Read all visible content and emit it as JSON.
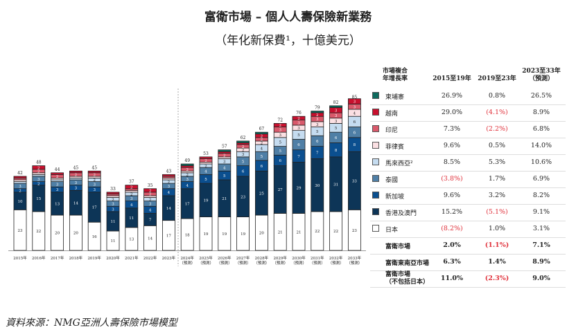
{
  "title": "富衛市場 – 個人人壽保險新業務",
  "subtitle": "（年化新保費¹，十億美元）",
  "source": "資料來源：NMG亞洲人壽保險市場模型",
  "chart_data": {
    "type": "bar",
    "stacked": true,
    "categories": [
      "2015年",
      "2016年",
      "2017年",
      "2018年",
      "2019年",
      "2020年",
      "2021年",
      "2022年",
      "2023年",
      "2024年",
      "2025年",
      "2026年",
      "2027年",
      "2028年",
      "2029年",
      "2030年",
      "2031年",
      "2032年",
      "2033年"
    ],
    "forecast_label": "（預測）",
    "forecast_from_index": 9,
    "totals": [
      42,
      48,
      44,
      45,
      45,
      33,
      37,
      35,
      43,
      49,
      53,
      57,
      62,
      67,
      72,
      76,
      79,
      82,
      85
    ],
    "series": [
      {
        "name": "日本",
        "color": "#ffffff",
        "values": [
          23,
          22,
          20,
          20,
          16,
          11,
          13,
          14,
          17,
          18,
          19,
          19,
          19,
          20,
          21,
          21,
          22,
          22,
          23
        ]
      },
      {
        "name": "香港及澳門",
        "color": "#0d3557",
        "values": [
          10,
          15,
          13,
          14,
          17,
          11,
          11,
          7,
          14,
          17,
          19,
          21,
          23,
          25,
          27,
          29,
          30,
          31,
          33
        ]
      },
      {
        "name": "新加坡",
        "color": "#0b4f8f",
        "values": [
          2,
          2,
          3,
          3,
          3,
          3,
          4,
          4,
          4,
          4,
          5,
          5,
          6,
          6,
          6,
          7,
          7,
          8,
          8
        ]
      },
      {
        "name": "泰國",
        "color": "#4f7fa6",
        "values": [
          3,
          3,
          3,
          3,
          3,
          3,
          3,
          3,
          3,
          3,
          4,
          4,
          5,
          5,
          5,
          6,
          6,
          6,
          6
        ]
      },
      {
        "name": "馬來西亞",
        "color": "#c5dcf0",
        "values": [
          1,
          1,
          1,
          1,
          2,
          2,
          2,
          2,
          2,
          2,
          2,
          3,
          3,
          4,
          5,
          5,
          5,
          5,
          6
        ]
      },
      {
        "name": "菲律賓",
        "color": "#fbe0e3",
        "values": [
          1,
          1,
          1,
          1,
          1,
          1,
          1,
          1,
          1,
          1,
          1,
          1,
          2,
          2,
          3,
          3,
          3,
          3,
          4
        ]
      },
      {
        "name": "印尼",
        "color": "#d9596b",
        "values": [
          1,
          2,
          2,
          2,
          2,
          1,
          1,
          2,
          1,
          2,
          2,
          2,
          2,
          2,
          3,
          3,
          3,
          3,
          3
        ]
      },
      {
        "name": "越南",
        "color": "#c8102e",
        "values": [
          1,
          2,
          1,
          1,
          1,
          1,
          2,
          2,
          1,
          1,
          1,
          1,
          1,
          2,
          2,
          2,
          2,
          3,
          3
        ]
      },
      {
        "name": "柬埔寨",
        "color": "#0e6b5e",
        "values": [
          0,
          0,
          0,
          0,
          0,
          0,
          0,
          0,
          0,
          1,
          0,
          1,
          1,
          1,
          0,
          0,
          1,
          1,
          0
        ]
      }
    ]
  },
  "table": {
    "header": {
      "label_line1": "市場複合",
      "label_line2": "年增長率",
      "col1": "2015至19年",
      "col2": "2019至23年",
      "col3_line1": "2023至33年",
      "col3_line2": "（預測）"
    },
    "rows": [
      {
        "name": "柬埔寨",
        "color": "#0e6b5e",
        "v": [
          "26.9%",
          "0.8%",
          "26.5%"
        ]
      },
      {
        "name": "越南",
        "color": "#c8102e",
        "v": [
          "29.0%",
          "(4.1%)",
          "8.9%"
        ]
      },
      {
        "name": "印尼",
        "color": "#d9596b",
        "v": [
          "7.3%",
          "(2.2%)",
          "6.8%"
        ]
      },
      {
        "name": "菲律賓",
        "color": "#fbe0e3",
        "v": [
          "9.6%",
          "0.5%",
          "14.0%"
        ]
      },
      {
        "name": "馬來西亞²",
        "color": "#c5dcf0",
        "v": [
          "8.5%",
          "5.3%",
          "10.6%"
        ]
      },
      {
        "name": "泰國",
        "color": "#4f7fa6",
        "v": [
          "(3.8%)",
          "1.7%",
          "6.9%"
        ]
      },
      {
        "name": "新加坡",
        "color": "#0b4f8f",
        "v": [
          "9.6%",
          "3.2%",
          "8.2%"
        ]
      },
      {
        "name": "香港及澳門",
        "color": "#0d3557",
        "v": [
          "15.2%",
          "(5.1%)",
          "9.1%"
        ]
      },
      {
        "name": "日本",
        "color": "#ffffff",
        "v": [
          "(8.2%)",
          "1.0%",
          "3.1%"
        ]
      }
    ],
    "totals": [
      {
        "name": "富衛市場",
        "v": [
          "2.0%",
          "(1.1%)",
          "7.1%"
        ]
      },
      {
        "name": "富衛東南亞市場",
        "v": [
          "6.3%",
          "1.4%",
          "8.9%"
        ]
      },
      {
        "name": "富衛市場",
        "name2": "（不包括日本）",
        "v": [
          "11.0%",
          "(2.3%)",
          "9.0%"
        ]
      }
    ]
  }
}
